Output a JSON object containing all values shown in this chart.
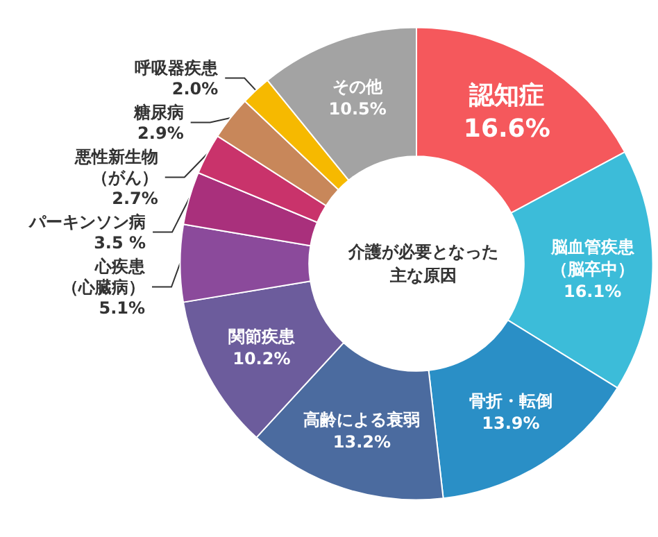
{
  "chart_data": {
    "type": "donut",
    "title": "介護が必要となった主な原因",
    "categories": [
      "認知症",
      "脳血管疾患（脳卒中）",
      "骨折・転倒",
      "高齢による衰弱",
      "関節疾患",
      "心疾患（心臓病）",
      "パーキンソン病",
      "悪性新生物（がん）",
      "糖尿病",
      "呼吸器疾患",
      "その他"
    ],
    "values": [
      16.6,
      16.1,
      13.9,
      13.2,
      10.2,
      5.1,
      3.5,
      2.7,
      2.9,
      2.0,
      10.5
    ],
    "value_labels": [
      "16.6%",
      "16.1%",
      "13.9%",
      "13.2%",
      "10.2%",
      "5.1%",
      "3.5 %",
      "2.7%",
      "2.9%",
      "2.0%",
      "10.5%"
    ],
    "colors": [
      "#f5585c",
      "#3cbcd9",
      "#2a8fc6",
      "#4b6b9f",
      "#6c5c9c",
      "#8b4a9b",
      "#a9307c",
      "#c9336b",
      "#c8875a",
      "#f6b900",
      "#a3a3a3"
    ],
    "legend": false
  }
}
